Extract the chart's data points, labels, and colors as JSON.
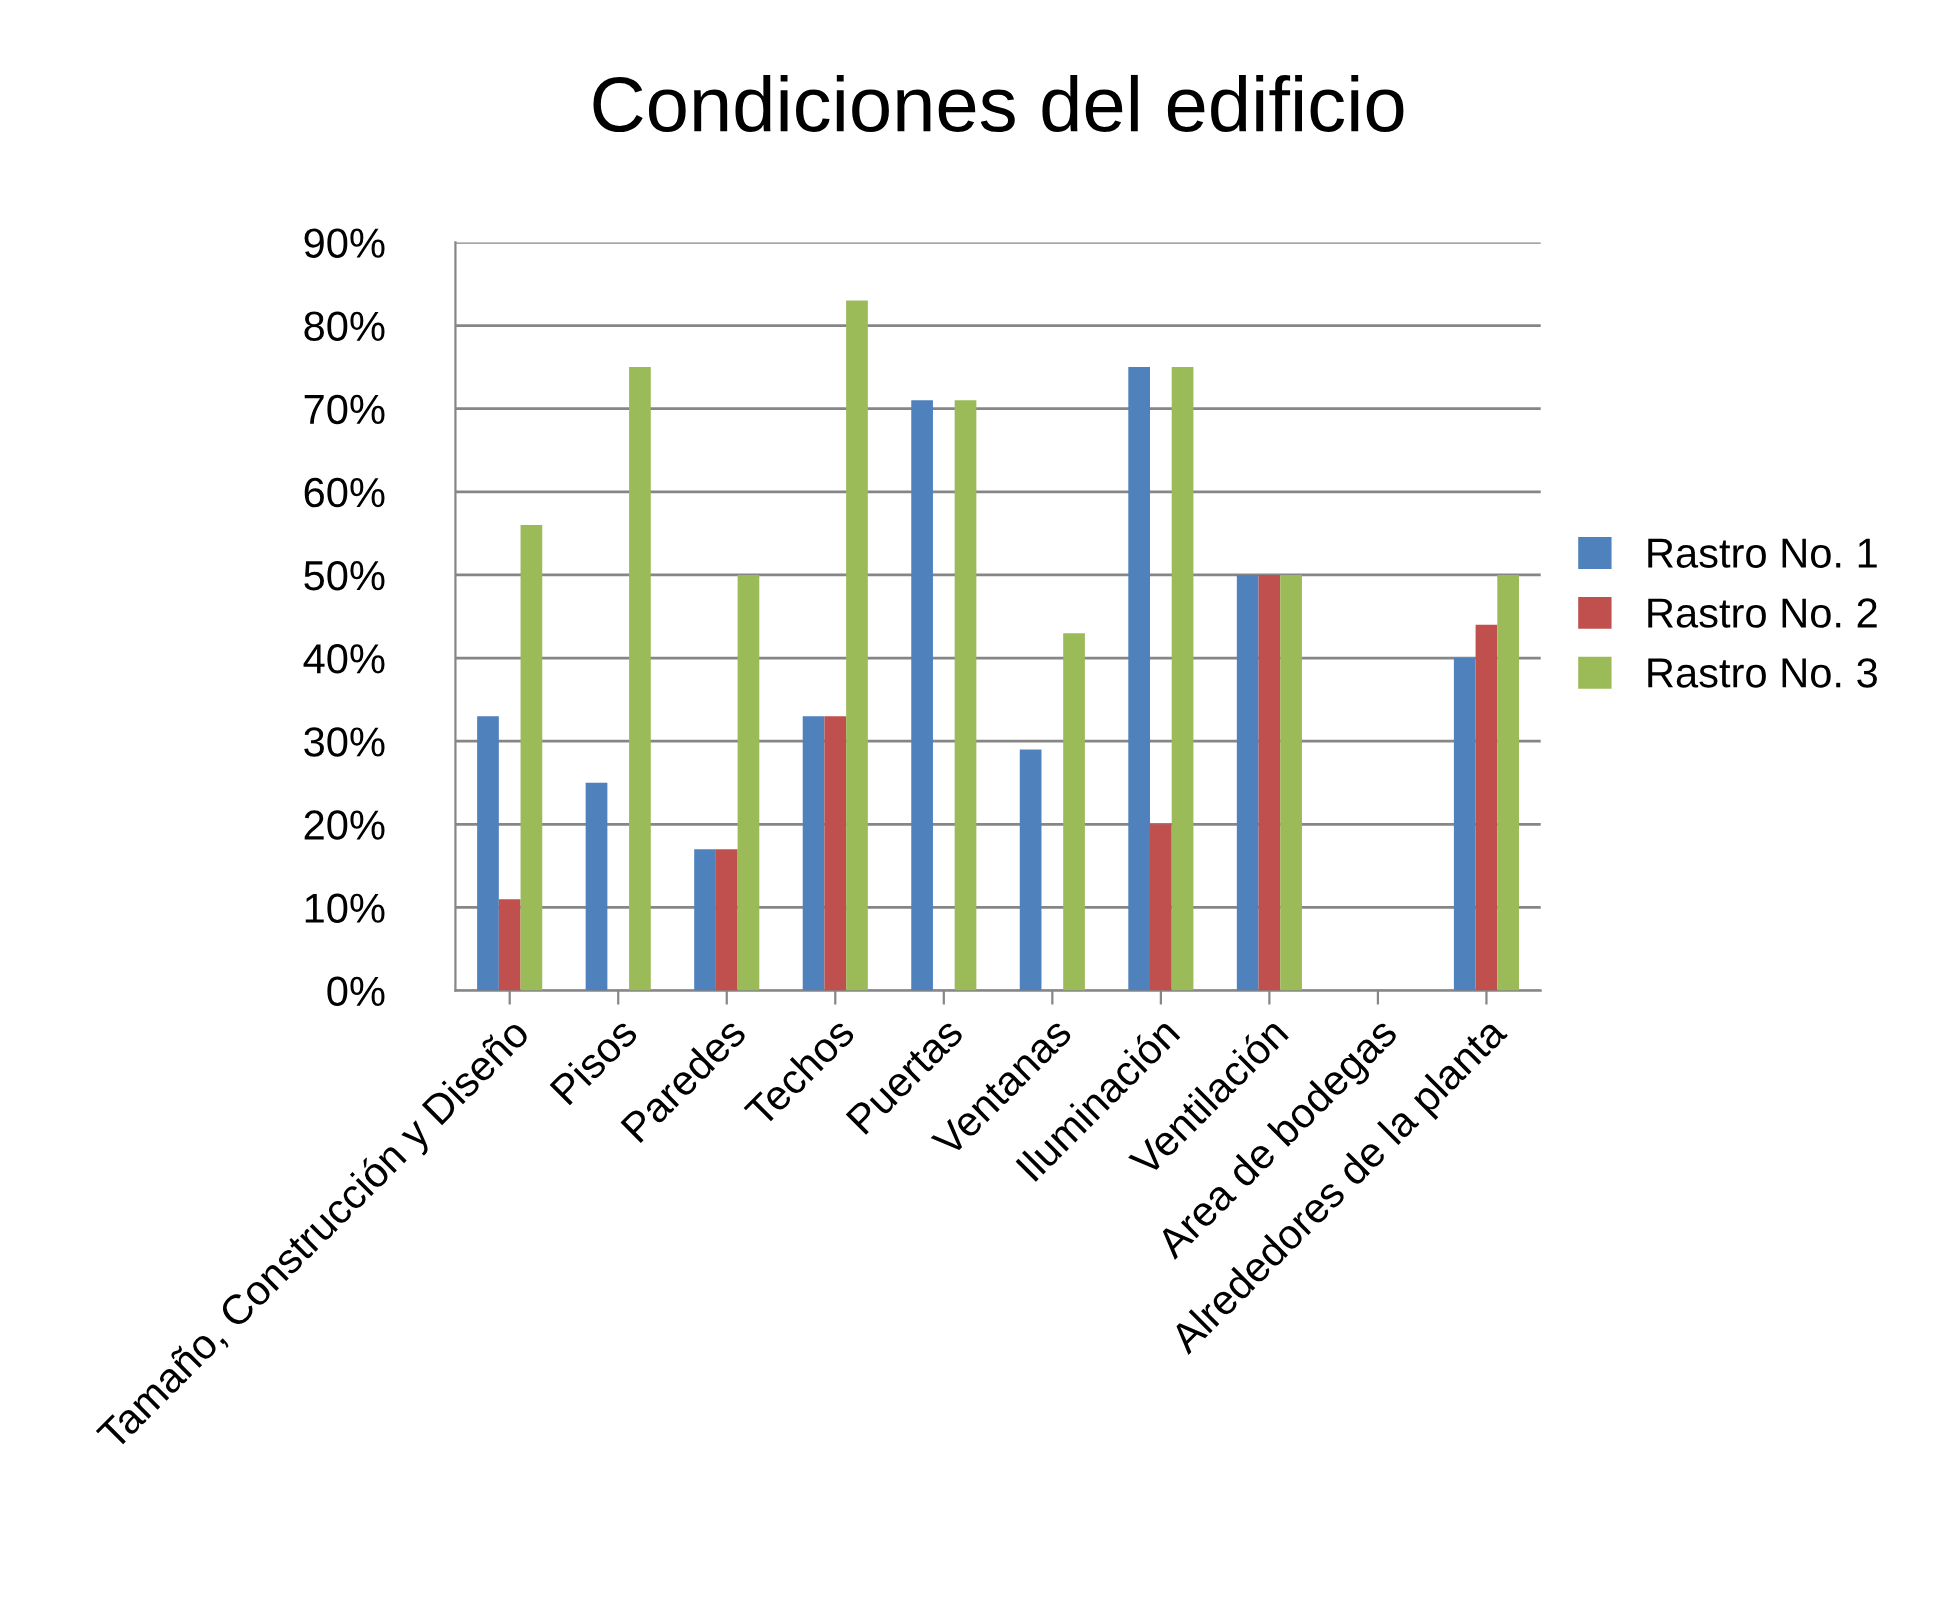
{
  "chart_data": {
    "type": "bar",
    "title": "Condiciones del edificio",
    "categories": [
      "Tamaño, Construcción y Diseño",
      "Pisos",
      "Paredes",
      "Techos",
      "Puertas",
      "Ventanas",
      "Iluminación",
      "Ventilación",
      "Area de bodegas",
      "Alrededores de la planta"
    ],
    "series": [
      {
        "name": "Rastro No. 1",
        "color": "#4f81bd",
        "values": [
          33,
          25,
          17,
          33,
          71,
          29,
          75,
          50,
          0,
          40
        ]
      },
      {
        "name": "Rastro No. 2",
        "color": "#c0504d",
        "values": [
          11,
          0,
          17,
          33,
          0,
          0,
          20,
          50,
          0,
          44
        ]
      },
      {
        "name": "Rastro No. 3",
        "color": "#9bbb59",
        "values": [
          56,
          75,
          50,
          83,
          71,
          43,
          75,
          50,
          0,
          50
        ]
      }
    ],
    "ylim": [
      0,
      90
    ],
    "yticks": [
      {
        "value": 0,
        "label": "0%"
      },
      {
        "value": 10,
        "label": "10%"
      },
      {
        "value": 20,
        "label": "20%"
      },
      {
        "value": 30,
        "label": "30%"
      },
      {
        "value": 40,
        "label": "40%"
      },
      {
        "value": 50,
        "label": "50%"
      },
      {
        "value": 60,
        "label": "60%"
      },
      {
        "value": 70,
        "label": "70%"
      },
      {
        "value": 80,
        "label": "80%"
      },
      {
        "value": 90,
        "label": "90%"
      }
    ],
    "grid": "y",
    "legend": "right"
  }
}
